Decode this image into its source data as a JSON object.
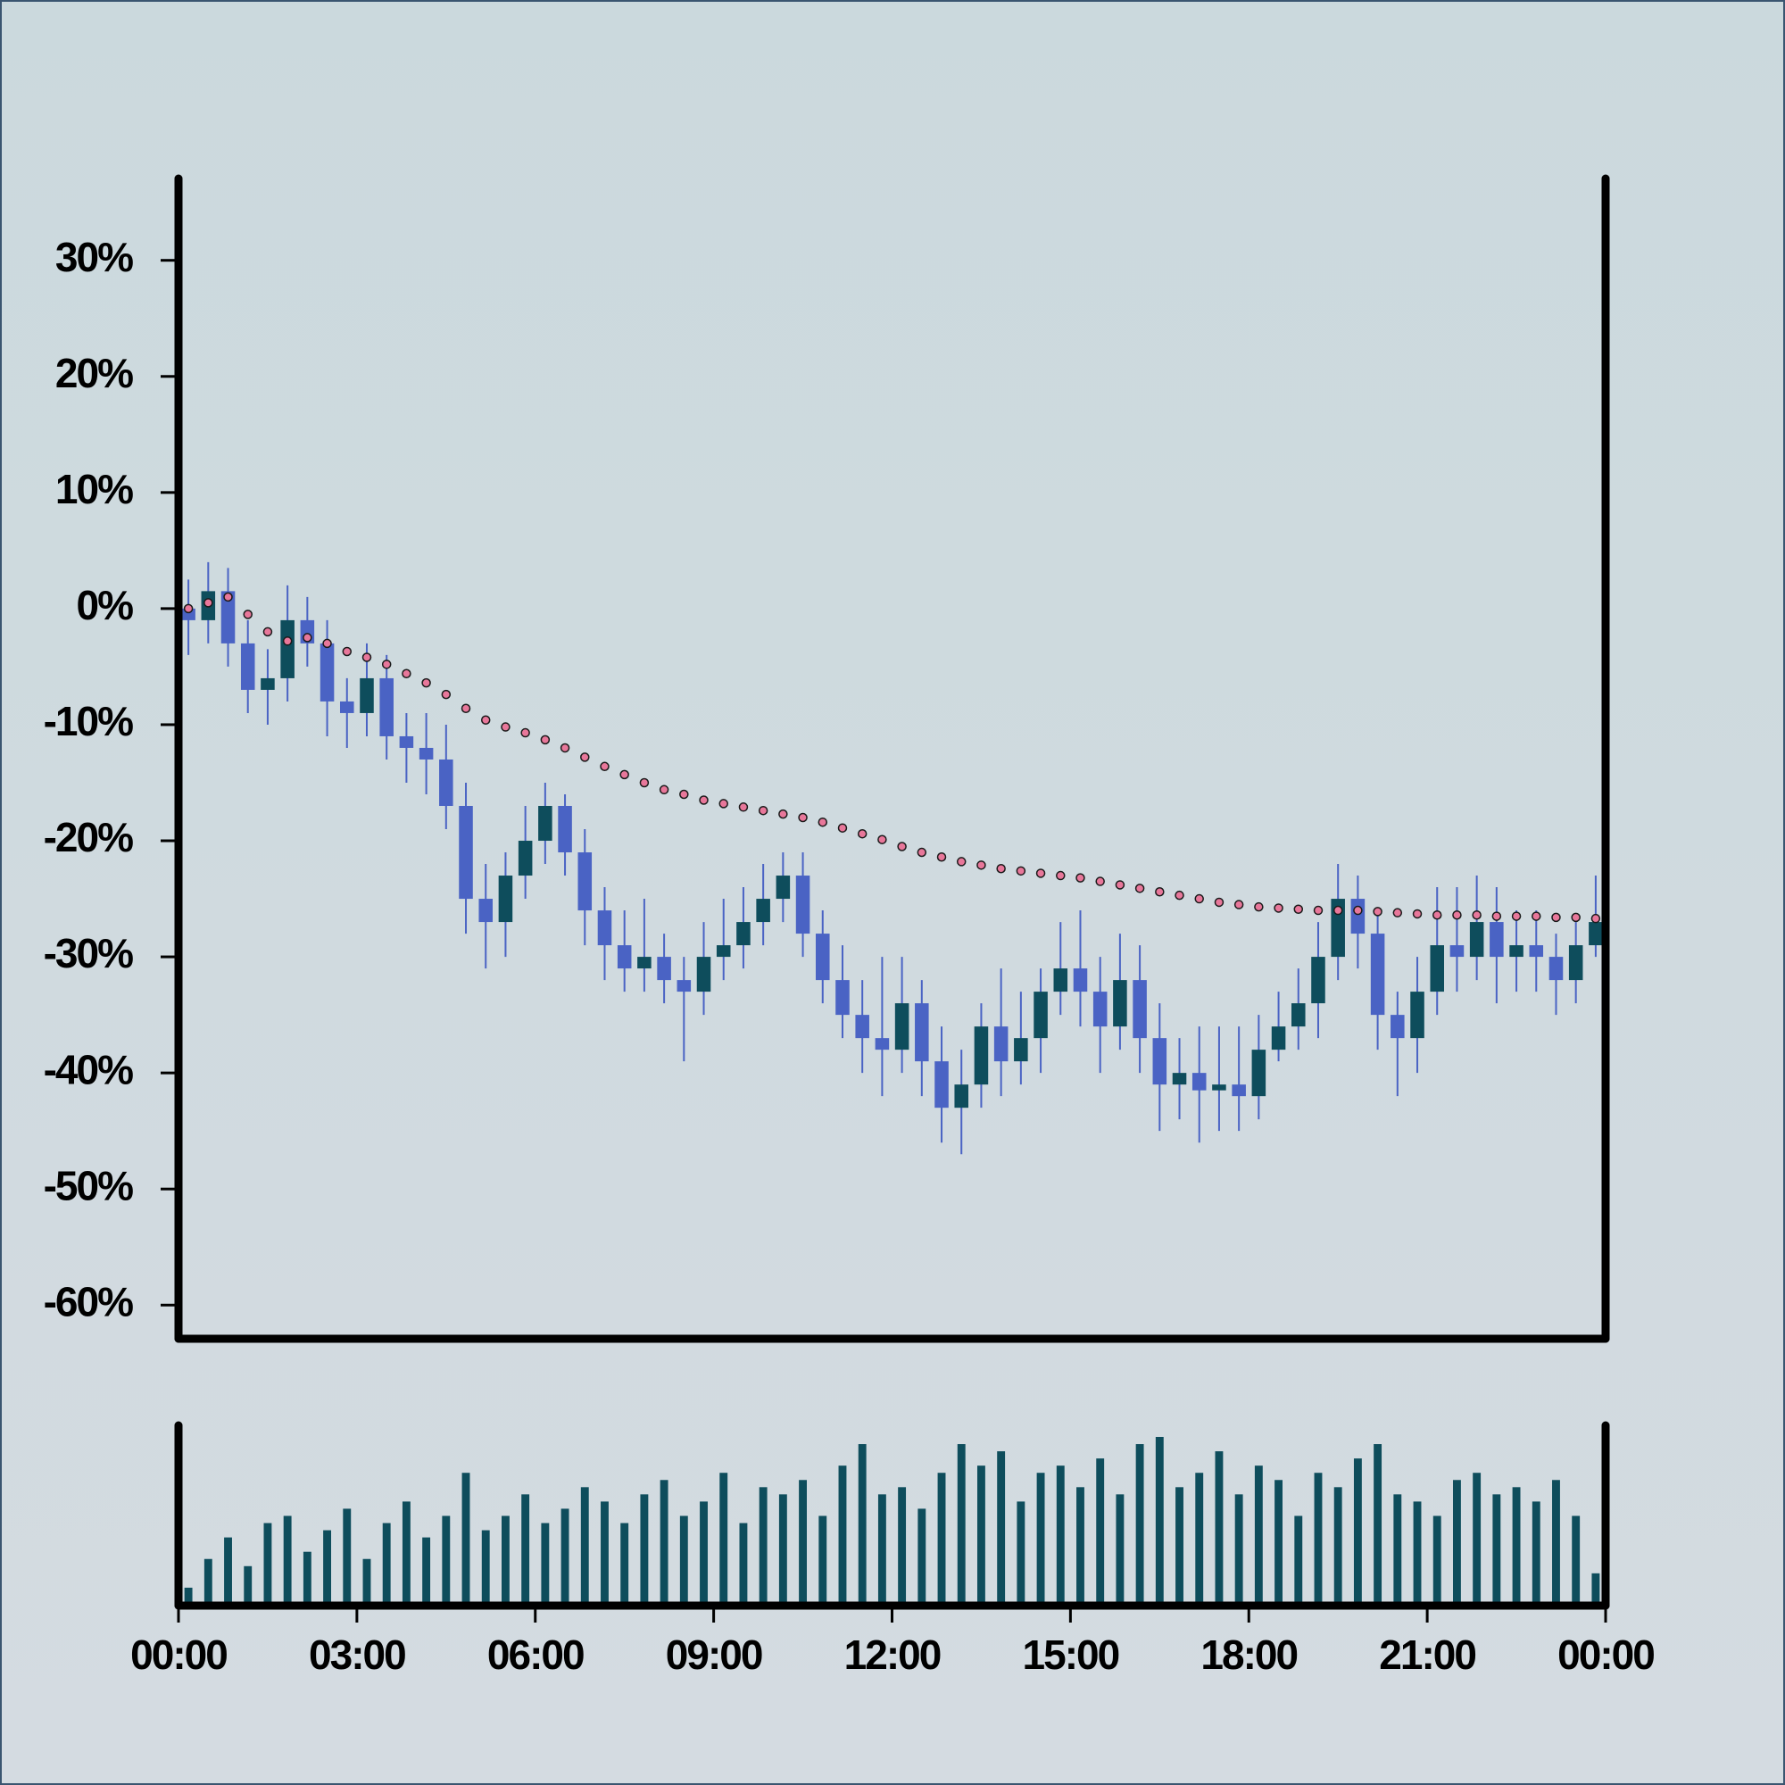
{
  "chart_data": {
    "type": "candlestick",
    "x": [
      0,
      20,
      40,
      60,
      80,
      100,
      120,
      140,
      160,
      180,
      200,
      220,
      240,
      260,
      280,
      300,
      320,
      340,
      360,
      380,
      400,
      420,
      440,
      460,
      480,
      500,
      520,
      540,
      560,
      580,
      600,
      620,
      640,
      660,
      680,
      700,
      720,
      740,
      760,
      780,
      800,
      820,
      840,
      860,
      880,
      900,
      920,
      940,
      960,
      980,
      1000,
      1020,
      1040,
      1060,
      1080,
      1100,
      1120,
      1140,
      1160,
      1180,
      1200,
      1220,
      1240,
      1260,
      1280,
      1300,
      1320,
      1340,
      1360,
      1380,
      1400,
      1420
    ],
    "open": [
      0,
      -1,
      1.5,
      -3,
      -7,
      -6,
      -1,
      -3,
      -8,
      -9,
      -6,
      -11,
      -12,
      -13,
      -17,
      -25,
      -27,
      -23,
      -20,
      -17,
      -21,
      -26,
      -29,
      -31,
      -30,
      -32,
      -33,
      -30,
      -29,
      -27,
      -25,
      -23,
      -28,
      -32,
      -35,
      -37,
      -38,
      -34,
      -39,
      -43,
      -41,
      -36,
      -39,
      -37,
      -33,
      -31,
      -33,
      -36,
      -32,
      -37,
      -41,
      -40,
      -41.5,
      -41,
      -42,
      -38,
      -36,
      -34,
      -30,
      -25,
      -28,
      -35,
      -37,
      -33,
      -29,
      -30,
      -27,
      -30,
      -29,
      -30,
      -32,
      -29
    ],
    "high": [
      2.5,
      4,
      3.5,
      -1,
      -3.5,
      2,
      1,
      -1,
      -6,
      -3,
      -4,
      -9,
      -9,
      -10,
      -15,
      -22,
      -21,
      -17,
      -15,
      -16,
      -19,
      -24,
      -26,
      -25,
      -28,
      -30,
      -27,
      -25,
      -24,
      -22,
      -21,
      -21,
      -26,
      -29,
      -32,
      -30,
      -30,
      -32,
      -36,
      -38,
      -34,
      -31,
      -33,
      -31,
      -27,
      -26,
      -30,
      -28,
      -29,
      -34,
      -37,
      -36,
      -36,
      -36,
      -35,
      -33,
      -31,
      -27,
      -22,
      -23,
      -26,
      -33,
      -30,
      -24,
      -24,
      -23,
      -24,
      -26,
      -26,
      -28,
      -27,
      -23
    ],
    "low": [
      -4,
      -3,
      -5,
      -9,
      -10,
      -8,
      -5,
      -11,
      -12,
      -11,
      -13,
      -15,
      -16,
      -19,
      -28,
      -31,
      -30,
      -25,
      -22,
      -23,
      -29,
      -32,
      -33,
      -33,
      -34,
      -39,
      -35,
      -32,
      -31,
      -29,
      -27,
      -30,
      -34,
      -37,
      -40,
      -42,
      -40,
      -42,
      -46,
      -47,
      -43,
      -42,
      -41,
      -40,
      -35,
      -36,
      -40,
      -38,
      -40,
      -45,
      -44,
      -46,
      -45,
      -45,
      -44,
      -39,
      -38,
      -37,
      -32,
      -31,
      -38,
      -42,
      -40,
      -35,
      -33,
      -32,
      -34,
      -33,
      -33,
      -35,
      -34,
      -30
    ],
    "close": [
      -1,
      1.5,
      -3,
      -7,
      -6,
      -1,
      -3,
      -8,
      -9,
      -6,
      -11,
      -12,
      -13,
      -17,
      -25,
      -27,
      -23,
      -20,
      -17,
      -21,
      -26,
      -29,
      -31,
      -30,
      -32,
      -33,
      -30,
      -29,
      -27,
      -25,
      -23,
      -28,
      -32,
      -35,
      -37,
      -38,
      -34,
      -39,
      -43,
      -41,
      -36,
      -39,
      -37,
      -33,
      -31,
      -33,
      -36,
      -32,
      -37,
      -41,
      -40,
      -41.5,
      -41,
      -42,
      -38,
      -36,
      -34,
      -30,
      -25,
      -28,
      -35,
      -37,
      -33,
      -29,
      -30,
      -27,
      -30,
      -29,
      -30,
      -32,
      -29,
      -27
    ],
    "up_color": "#0e4d5c",
    "down_color": "#4a63c4",
    "ma": {
      "color": "#e8779a",
      "values": [
        0,
        0.5,
        1,
        -0.5,
        -2,
        -2.8,
        -2.5,
        -3,
        -3.7,
        -4.2,
        -4.8,
        -5.6,
        -6.4,
        -7.4,
        -8.6,
        -9.6,
        -10.2,
        -10.7,
        -11.3,
        -12,
        -12.8,
        -13.6,
        -14.3,
        -15,
        -15.6,
        -16,
        -16.5,
        -16.8,
        -17.1,
        -17.4,
        -17.7,
        -18,
        -18.4,
        -18.9,
        -19.4,
        -19.9,
        -20.5,
        -21,
        -21.4,
        -21.8,
        -22.1,
        -22.4,
        -22.6,
        -22.8,
        -23,
        -23.2,
        -23.5,
        -23.8,
        -24.1,
        -24.4,
        -24.7,
        -25,
        -25.3,
        -25.5,
        -25.7,
        -25.8,
        -25.9,
        -26,
        -26,
        -26,
        -26.1,
        -26.2,
        -26.3,
        -26.4,
        -26.4,
        -26.4,
        -26.5,
        -26.5,
        -26.5,
        -26.6,
        -26.6,
        -26.7
      ]
    },
    "volume": {
      "color": "#0e4d5c",
      "values": [
        10,
        30,
        45,
        25,
        55,
        60,
        35,
        50,
        65,
        30,
        55,
        70,
        45,
        60,
        90,
        50,
        60,
        75,
        55,
        65,
        80,
        70,
        55,
        75,
        85,
        60,
        70,
        90,
        55,
        80,
        75,
        85,
        60,
        95,
        110,
        75,
        80,
        65,
        90,
        110,
        95,
        105,
        70,
        90,
        95,
        80,
        100,
        75,
        110,
        115,
        80,
        90,
        105,
        75,
        95,
        85,
        60,
        90,
        80,
        100,
        110,
        75,
        70,
        60,
        85,
        90,
        75,
        80,
        70,
        85,
        60,
        20
      ]
    },
    "xlim": [
      0,
      1440
    ],
    "xticks": [
      {
        "value": 0,
        "label": "00:00"
      },
      {
        "value": 180,
        "label": "03:00"
      },
      {
        "value": 360,
        "label": "06:00"
      },
      {
        "value": 540,
        "label": "09:00"
      },
      {
        "value": 720,
        "label": "12:00"
      },
      {
        "value": 900,
        "label": "15:00"
      },
      {
        "value": 1080,
        "label": "18:00"
      },
      {
        "value": 1260,
        "label": "21:00"
      },
      {
        "value": 1440,
        "label": "00:00"
      }
    ],
    "ylim": [
      -62.9,
      37.05
    ],
    "yticks": [
      {
        "value": 30,
        "label": "30%"
      },
      {
        "value": 20,
        "label": "20%"
      },
      {
        "value": 10,
        "label": "10%"
      },
      {
        "value": 0,
        "label": "0%"
      },
      {
        "value": -10,
        "label": "-10%"
      },
      {
        "value": -20,
        "label": "-20%"
      },
      {
        "value": -30,
        "label": "-30%"
      },
      {
        "value": -40,
        "label": "-40%"
      },
      {
        "value": -50,
        "label": "-50%"
      },
      {
        "value": -60,
        "label": "-60%"
      }
    ]
  }
}
